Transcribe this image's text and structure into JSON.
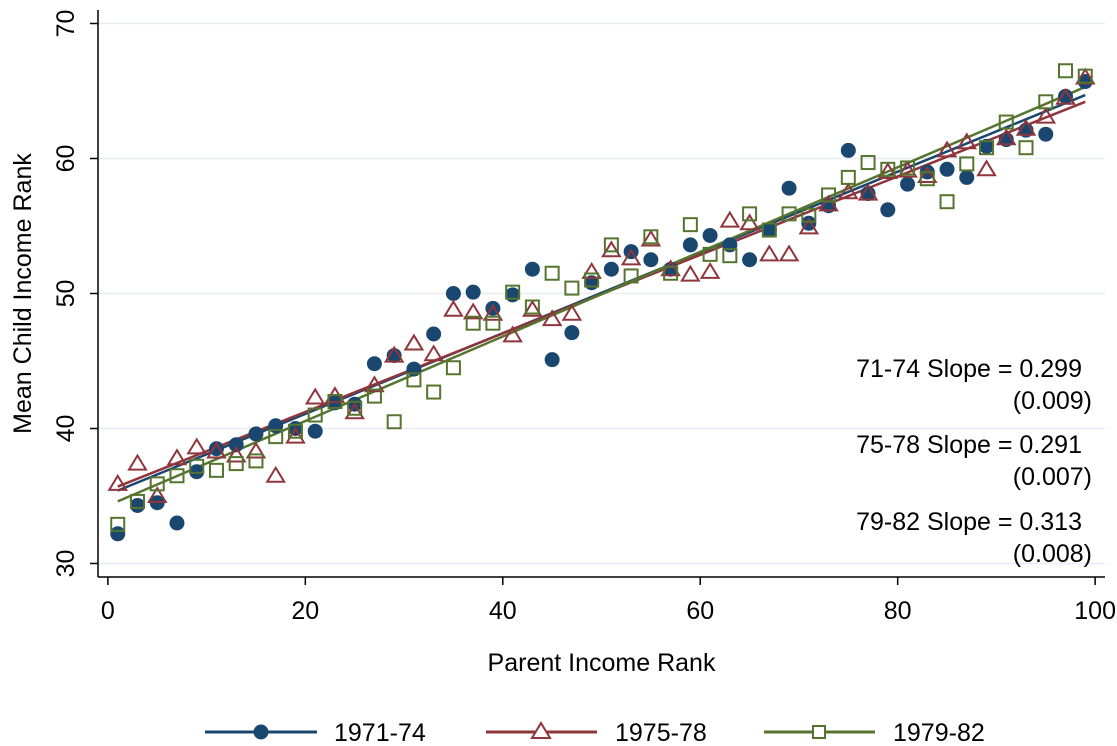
{
  "chart_data": {
    "type": "scatter",
    "xlabel": "Parent Income Rank",
    "ylabel": "Mean Child Income Rank",
    "xlim": [
      -1,
      101
    ],
    "ylim": [
      29,
      71
    ],
    "xticks": [
      0,
      20,
      40,
      60,
      80,
      100
    ],
    "yticks": [
      30,
      40,
      50,
      60,
      70
    ],
    "grid": "horizontal",
    "legend_position": "bottom",
    "colors": {
      "s1": "#1a476f",
      "s2": "#90353b",
      "s3": "#55752f"
    },
    "series": [
      {
        "name": "1971-74",
        "marker": "circle",
        "color": "#1a476f",
        "fit": {
          "slope": 0.299,
          "y_at_x1": 35.4,
          "y_at_x99": 64.7
        },
        "points": [
          [
            1,
            32.2
          ],
          [
            3,
            34.3
          ],
          [
            5,
            34.5
          ],
          [
            7,
            33.0
          ],
          [
            9,
            36.8
          ],
          [
            11,
            38.5
          ],
          [
            13,
            38.8
          ],
          [
            15,
            39.6
          ],
          [
            17,
            40.2
          ],
          [
            19,
            40.0
          ],
          [
            21,
            39.8
          ],
          [
            23,
            41.9
          ],
          [
            25,
            41.8
          ],
          [
            27,
            44.8
          ],
          [
            29,
            45.4
          ],
          [
            31,
            44.4
          ],
          [
            33,
            47.0
          ],
          [
            35,
            50.0
          ],
          [
            37,
            50.1
          ],
          [
            39,
            48.9
          ],
          [
            41,
            49.9
          ],
          [
            43,
            51.8
          ],
          [
            45,
            45.1
          ],
          [
            47,
            47.1
          ],
          [
            49,
            50.8
          ],
          [
            51,
            51.8
          ],
          [
            53,
            53.1
          ],
          [
            55,
            52.5
          ],
          [
            57,
            51.8
          ],
          [
            59,
            53.6
          ],
          [
            61,
            54.3
          ],
          [
            63,
            53.6
          ],
          [
            65,
            52.5
          ],
          [
            67,
            54.7
          ],
          [
            69,
            57.8
          ],
          [
            71,
            55.2
          ],
          [
            73,
            56.5
          ],
          [
            75,
            60.6
          ],
          [
            77,
            57.4
          ],
          [
            79,
            56.2
          ],
          [
            81,
            58.1
          ],
          [
            83,
            59.0
          ],
          [
            85,
            59.2
          ],
          [
            87,
            58.6
          ],
          [
            89,
            60.9
          ],
          [
            91,
            61.4
          ],
          [
            93,
            62.1
          ],
          [
            95,
            61.8
          ],
          [
            97,
            64.6
          ],
          [
            99,
            65.7
          ]
        ]
      },
      {
        "name": "1975-78",
        "marker": "triangle",
        "color": "#90353b",
        "fit": {
          "slope": 0.291,
          "y_at_x1": 35.7,
          "y_at_x99": 64.2
        },
        "points": [
          [
            1,
            35.9
          ],
          [
            3,
            37.4
          ],
          [
            5,
            35.0
          ],
          [
            7,
            37.8
          ],
          [
            9,
            38.6
          ],
          [
            11,
            38.3
          ],
          [
            13,
            38.0
          ],
          [
            15,
            38.3
          ],
          [
            17,
            36.5
          ],
          [
            19,
            39.4
          ],
          [
            21,
            42.3
          ],
          [
            23,
            42.4
          ],
          [
            25,
            41.2
          ],
          [
            27,
            43.2
          ],
          [
            29,
            45.4
          ],
          [
            31,
            46.3
          ],
          [
            33,
            45.5
          ],
          [
            35,
            48.8
          ],
          [
            37,
            48.6
          ],
          [
            39,
            48.5
          ],
          [
            41,
            46.9
          ],
          [
            43,
            48.8
          ],
          [
            45,
            48.1
          ],
          [
            47,
            48.5
          ],
          [
            49,
            51.6
          ],
          [
            51,
            53.2
          ],
          [
            53,
            52.6
          ],
          [
            55,
            54.0
          ],
          [
            57,
            51.8
          ],
          [
            59,
            51.4
          ],
          [
            61,
            51.6
          ],
          [
            63,
            55.4
          ],
          [
            65,
            55.2
          ],
          [
            67,
            52.9
          ],
          [
            69,
            52.9
          ],
          [
            71,
            54.9
          ],
          [
            73,
            56.6
          ],
          [
            75,
            57.5
          ],
          [
            77,
            57.4
          ],
          [
            79,
            59.0
          ],
          [
            81,
            59.1
          ],
          [
            83,
            58.7
          ],
          [
            85,
            60.6
          ],
          [
            87,
            61.2
          ],
          [
            89,
            59.2
          ],
          [
            91,
            61.5
          ],
          [
            93,
            62.2
          ],
          [
            95,
            63.1
          ],
          [
            97,
            64.5
          ],
          [
            99,
            66.0
          ]
        ]
      },
      {
        "name": "1979-82",
        "marker": "square",
        "color": "#55752f",
        "fit": {
          "slope": 0.313,
          "y_at_x1": 34.6,
          "y_at_x99": 65.3
        },
        "points": [
          [
            1,
            32.9
          ],
          [
            3,
            34.6
          ],
          [
            5,
            35.9
          ],
          [
            7,
            36.5
          ],
          [
            9,
            37.2
          ],
          [
            11,
            36.9
          ],
          [
            13,
            37.4
          ],
          [
            15,
            37.6
          ],
          [
            17,
            39.4
          ],
          [
            19,
            39.8
          ],
          [
            21,
            41.0
          ],
          [
            23,
            42.0
          ],
          [
            25,
            41.5
          ],
          [
            27,
            42.4
          ],
          [
            29,
            40.5
          ],
          [
            31,
            43.6
          ],
          [
            33,
            42.7
          ],
          [
            35,
            44.5
          ],
          [
            37,
            47.8
          ],
          [
            39,
            47.8
          ],
          [
            41,
            50.1
          ],
          [
            43,
            49.0
          ],
          [
            45,
            51.5
          ],
          [
            47,
            50.4
          ],
          [
            49,
            51.0
          ],
          [
            51,
            53.6
          ],
          [
            53,
            51.3
          ],
          [
            55,
            54.2
          ],
          [
            57,
            51.5
          ],
          [
            59,
            55.1
          ],
          [
            61,
            52.9
          ],
          [
            63,
            52.8
          ],
          [
            65,
            55.9
          ],
          [
            67,
            54.7
          ],
          [
            69,
            55.9
          ],
          [
            71,
            55.8
          ],
          [
            73,
            57.3
          ],
          [
            75,
            58.6
          ],
          [
            77,
            59.7
          ],
          [
            79,
            59.2
          ],
          [
            81,
            59.3
          ],
          [
            83,
            58.5
          ],
          [
            85,
            56.8
          ],
          [
            87,
            59.6
          ],
          [
            89,
            60.8
          ],
          [
            91,
            62.7
          ],
          [
            93,
            60.8
          ],
          [
            95,
            64.2
          ],
          [
            97,
            66.5
          ],
          [
            99,
            66.1
          ]
        ]
      }
    ],
    "annotations": [
      {
        "line1": "71-74 Slope = 0.299",
        "line2": "(0.009)"
      },
      {
        "line1": "75-78 Slope = 0.291",
        "line2": "(0.007)"
      },
      {
        "line1": "79-82 Slope = 0.313",
        "line2": "(0.008)"
      }
    ]
  }
}
